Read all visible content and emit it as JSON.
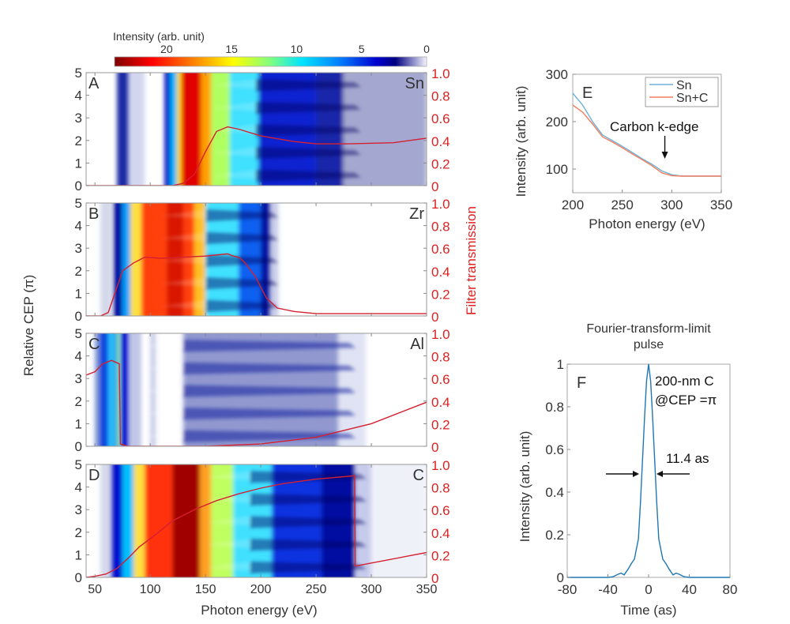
{
  "colorbar": {
    "label": "Intensity (arb. unit)",
    "ticks": [
      "20",
      "15",
      "10",
      "5",
      "0"
    ],
    "tick_values": [
      20,
      15,
      10,
      5,
      0
    ],
    "range": [
      24,
      0
    ]
  },
  "shared": {
    "xlabel": "Photon energy (eV)",
    "ylabel_left": "Relative CEP (π)",
    "ylabel_right": "Filter transmission",
    "x_ticks": [
      "50",
      "100",
      "150",
      "200",
      "250",
      "300",
      "350"
    ],
    "y_ticks_left": [
      "0",
      "1",
      "2",
      "3",
      "4",
      "5"
    ],
    "y_ticks_right": [
      "0",
      "0.2",
      "0.4",
      "0.6",
      "0.8",
      "1.0"
    ]
  },
  "chart_data": [
    {
      "type": "heatmap",
      "panel": "A",
      "filter": "Sn",
      "xlim": [
        42,
        350
      ],
      "ylim": [
        0,
        5
      ],
      "y2lim": [
        0,
        1
      ],
      "transmission_curve": {
        "x": [
          42,
          120,
          130,
          140,
          150,
          160,
          170,
          180,
          200,
          230,
          250,
          280,
          320,
          350
        ],
        "y": [
          0,
          0,
          0.02,
          0.1,
          0.3,
          0.48,
          0.52,
          0.5,
          0.44,
          0.39,
          0.37,
          0.37,
          0.38,
          0.42
        ]
      }
    },
    {
      "type": "heatmap",
      "panel": "B",
      "filter": "Zr",
      "xlim": [
        42,
        350
      ],
      "ylim": [
        0,
        5
      ],
      "y2lim": [
        0,
        1
      ],
      "transmission_curve": {
        "x": [
          42,
          55,
          62,
          68,
          75,
          85,
          95,
          110,
          130,
          150,
          170,
          175,
          180,
          185,
          195,
          205,
          215,
          230,
          250,
          350
        ],
        "y": [
          0,
          0,
          0.03,
          0.2,
          0.4,
          0.47,
          0.52,
          0.51,
          0.52,
          0.53,
          0.55,
          0.53,
          0.52,
          0.48,
          0.35,
          0.16,
          0.07,
          0.04,
          0.02,
          0.02
        ]
      }
    },
    {
      "type": "heatmap",
      "panel": "C",
      "filter": "Al",
      "xlim": [
        42,
        350
      ],
      "ylim": [
        0,
        5
      ],
      "y2lim": [
        0,
        1
      ],
      "transmission_curve": {
        "x": [
          42,
          50,
          57,
          65,
          72,
          73,
          80,
          100,
          150,
          200,
          250,
          300,
          350
        ],
        "y": [
          0.63,
          0.66,
          0.73,
          0.76,
          0.73,
          0.02,
          0,
          0,
          0,
          0.02,
          0.08,
          0.2,
          0.39
        ]
      }
    },
    {
      "type": "heatmap",
      "panel": "D",
      "filter": "C",
      "xlim": [
        42,
        350
      ],
      "ylim": [
        0,
        5
      ],
      "y2lim": [
        0,
        1
      ],
      "transmission_curve": {
        "x": [
          42,
          50,
          60,
          70,
          80,
          90,
          105,
          120,
          140,
          160,
          180,
          200,
          220,
          250,
          285,
          285.5,
          350
        ],
        "y": [
          0,
          0.01,
          0.03,
          0.08,
          0.17,
          0.27,
          0.38,
          0.5,
          0.6,
          0.68,
          0.74,
          0.79,
          0.83,
          0.87,
          0.9,
          0.1,
          0.22
        ]
      }
    },
    {
      "type": "line",
      "panel": "E",
      "xlabel": "Photon energy (eV)",
      "ylabel": "Intensity (arb. unit)",
      "xlim": [
        200,
        350
      ],
      "ylim": [
        50,
        300
      ],
      "x_ticks": [
        "200",
        "250",
        "300",
        "350"
      ],
      "y_ticks": [
        "100",
        "200",
        "300"
      ],
      "legend": "top-right",
      "annotation": "Carbon k-edge",
      "annotation_x": 293,
      "series": [
        {
          "name": "Sn",
          "color": "#6fb0d8",
          "x": [
            200,
            210,
            220,
            230,
            240,
            250,
            260,
            270,
            280,
            290,
            300,
            310,
            320,
            350
          ],
          "y": [
            260,
            235,
            200,
            172,
            160,
            148,
            135,
            122,
            110,
            96,
            88,
            85,
            85,
            85
          ]
        },
        {
          "name": "Sn+C",
          "color": "#f08060",
          "x": [
            200,
            210,
            220,
            230,
            240,
            250,
            260,
            270,
            280,
            290,
            300,
            310,
            320,
            350
          ],
          "y": [
            235,
            220,
            195,
            168,
            157,
            145,
            132,
            120,
            107,
            92,
            86,
            85,
            85,
            85
          ]
        }
      ]
    },
    {
      "type": "line",
      "panel": "F",
      "title": "Fourier-transform-limit pulse",
      "xlabel": "Time (as)",
      "ylabel": "Intensity (arb. unit)",
      "xlim": [
        -80,
        80
      ],
      "ylim": [
        0,
        1
      ],
      "x_ticks": [
        "-80",
        "-40",
        "0",
        "40",
        "80"
      ],
      "y_ticks": [
        "0",
        "0.2",
        "0.4",
        "0.6",
        "0.8",
        "1"
      ],
      "annotation_sample": "200-nm C",
      "annotation_cep": "@CEP =π",
      "fwhm_label": "11.4 as",
      "series": [
        {
          "name": "pulse",
          "color": "#1f77b4",
          "x": [
            -80,
            -40,
            -35,
            -30,
            -27,
            -24,
            -20,
            -17,
            -14,
            -10,
            -8,
            -6,
            -4,
            -2,
            0,
            2,
            4,
            6,
            8,
            10,
            14,
            17,
            20,
            24,
            27,
            30,
            35,
            40,
            55,
            80
          ],
          "y": [
            0,
            0,
            0.003,
            0.015,
            0.02,
            0.012,
            0.04,
            0.065,
            0.085,
            0.18,
            0.35,
            0.55,
            0.75,
            0.92,
            1,
            0.92,
            0.75,
            0.55,
            0.35,
            0.18,
            0.085,
            0.065,
            0.04,
            0.012,
            0.02,
            0.015,
            0.003,
            0,
            0,
            0
          ]
        }
      ]
    }
  ]
}
